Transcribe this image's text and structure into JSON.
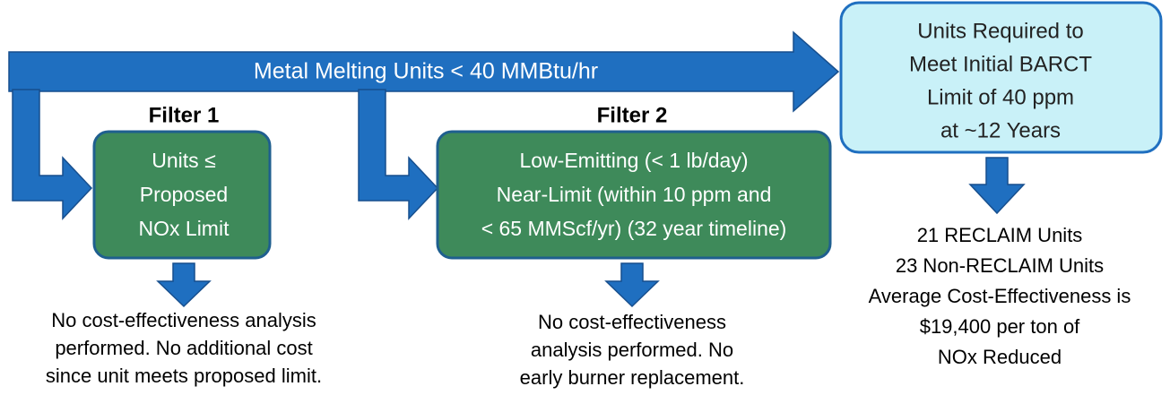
{
  "main_arrow": {
    "label": "Metal Melting Units < 40 MMBtu/hr"
  },
  "filters": [
    {
      "label": "Filter 1",
      "box": [
        "Units ≤",
        "Proposed",
        "NOx Limit"
      ],
      "result": [
        "No cost-effectiveness  analysis",
        "performed. No additional cost",
        "since unit meets proposed limit."
      ]
    },
    {
      "label": "Filter 2",
      "box": [
        "Low-Emitting (< 1 lb/day)",
        "Near-Limit (within 10 ppm and",
        "< 65 MMScf/yr) (32 year timeline)"
      ],
      "result": [
        "No cost-effectiveness",
        "analysis performed. No",
        "early burner replacement."
      ]
    }
  ],
  "target": {
    "box": [
      "Units Required to",
      "Meet Initial BARCT",
      "Limit of 40 ppm",
      "at ~12 Years"
    ],
    "result": [
      "21 RECLAIM Units",
      "23 Non-RECLAIM Units",
      "Average Cost-Effectiveness is",
      "$19,400 per ton of",
      "NOx Reduced"
    ]
  }
}
